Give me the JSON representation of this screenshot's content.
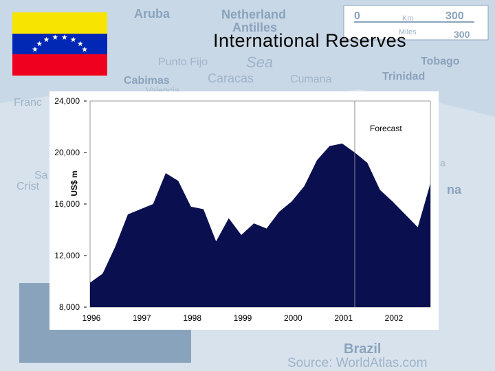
{
  "slide": {
    "title": "International Reserves"
  },
  "background_map": {
    "labels": [
      "Aruba",
      "Netherland",
      "Antilles",
      "Punto Fijo",
      "Cabimas",
      "Caracas",
      "Cumana",
      "Trinidad",
      "Tobago",
      "Valencia",
      "Franc",
      "Sa",
      "Crist",
      "Sea",
      "Brazil",
      "na",
      "a"
    ],
    "scale_labels": [
      "0",
      "300",
      "Km",
      "Miles",
      "300"
    ],
    "source": "Source: WorldAtlas.com"
  },
  "flag": {
    "colors": {
      "top": "#f7e400",
      "middle": "#0028b4",
      "bottom": "#f0001e",
      "stars": "#ffffff"
    },
    "star_count": 8
  },
  "chart_data": {
    "type": "area",
    "ylabel": "US$ m",
    "ylim": [
      8000,
      24000
    ],
    "yticks": [
      8000,
      12000,
      16000,
      20000,
      24000
    ],
    "ytick_labels": [
      "8,000",
      "12,000",
      "16,000",
      "20,000",
      "24,000"
    ],
    "xlim": [
      1996,
      2002.75
    ],
    "xticks": [
      1996,
      1997,
      1998,
      1999,
      2000,
      2001,
      2002
    ],
    "xtick_labels": [
      "1996",
      "1997",
      "1998",
      "1999",
      "2000",
      "2001",
      "2002"
    ],
    "forecast_start": 2001.25,
    "annotation": "Forecast",
    "fill_color": "#0a0f50",
    "x": [
      1996.0,
      1996.25,
      1996.5,
      1996.75,
      1997.0,
      1997.25,
      1997.5,
      1997.75,
      1998.0,
      1998.25,
      1998.5,
      1998.75,
      1999.0,
      1999.25,
      1999.5,
      1999.75,
      2000.0,
      2000.25,
      2000.5,
      2000.75,
      2001.0,
      2001.25,
      2001.5,
      2001.75,
      2002.0,
      2002.25,
      2002.5,
      2002.75
    ],
    "values": [
      9900,
      10600,
      12700,
      15200,
      15600,
      16000,
      18400,
      17800,
      15800,
      15600,
      13100,
      14900,
      13600,
      14500,
      14100,
      15400,
      16200,
      17400,
      19400,
      20500,
      20700,
      20000,
      19200,
      17100,
      16200,
      15200,
      14200,
      17600
    ]
  }
}
